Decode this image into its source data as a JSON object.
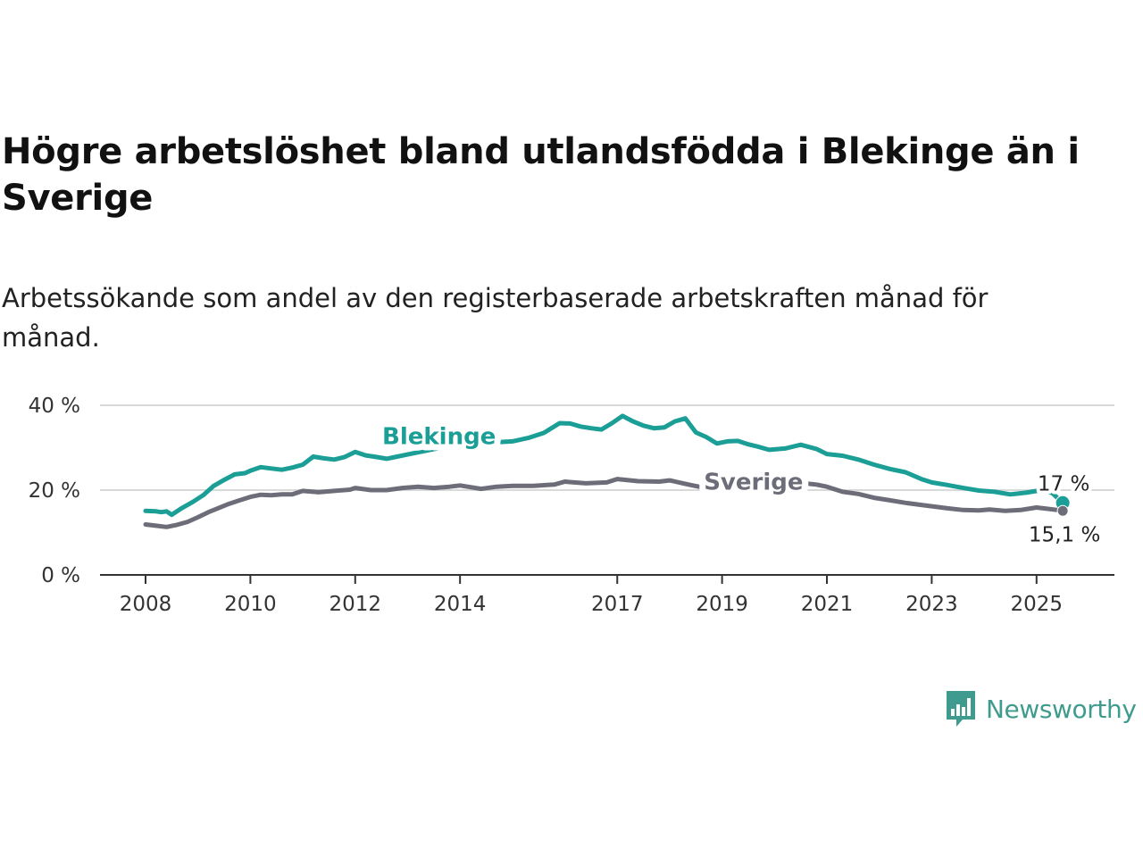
{
  "header": {
    "title": "Högre arbetslöshet bland utlandsfödda i Blekinge än i Sverige",
    "subtitle": "Arbetssökande som andel av den registerbaserade arbetskraften månad för månad."
  },
  "brand": {
    "name": "Newsworthy",
    "icon": "bar-chart-speech-bubble-icon",
    "color": "#3f9b8e"
  },
  "chart_data": {
    "type": "line",
    "title": "Högre arbetslöshet bland utlandsfödda i Blekinge än i Sverige",
    "subtitle": "Arbetssökande som andel av den registerbaserade arbetskraften månad för månad.",
    "xlabel": "",
    "ylabel": "",
    "xlim": [
      2008,
      2025.6
    ],
    "ylim": [
      0,
      40
    ],
    "x_ticks": [
      {
        "value": 2008,
        "label": "2008"
      },
      {
        "value": 2010,
        "label": "2010"
      },
      {
        "value": 2012,
        "label": "2012"
      },
      {
        "value": 2014,
        "label": "2014"
      },
      {
        "value": 2017,
        "label": "2017"
      },
      {
        "value": 2019,
        "label": "2019"
      },
      {
        "value": 2021,
        "label": "2021"
      },
      {
        "value": 2023,
        "label": "2023"
      },
      {
        "value": 2025,
        "label": "2025"
      }
    ],
    "y_ticks": [
      {
        "value": 0,
        "label": "0 %"
      },
      {
        "value": 20,
        "label": "20 %"
      },
      {
        "value": 40,
        "label": "40 %"
      }
    ],
    "grid": true,
    "legend": "inline",
    "series": [
      {
        "name": "Blekinge",
        "color": "#1a9e96",
        "label_at": [
          2013.6,
          30.8
        ],
        "end_label": "17 %",
        "x": [
          2008.0,
          2008.2,
          2008.3,
          2008.4,
          2008.5,
          2008.7,
          2008.9,
          2009.1,
          2009.3,
          2009.5,
          2009.7,
          2009.9,
          2010.0,
          2010.2,
          2010.4,
          2010.6,
          2010.8,
          2011.0,
          2011.2,
          2011.4,
          2011.6,
          2011.8,
          2012.0,
          2012.2,
          2012.4,
          2012.6,
          2012.8,
          2013.0,
          2013.4,
          2013.8,
          2014.2,
          2014.6,
          2015.0,
          2015.3,
          2015.6,
          2015.9,
          2016.1,
          2016.3,
          2016.5,
          2016.7,
          2016.9,
          2017.1,
          2017.3,
          2017.5,
          2017.7,
          2017.9,
          2018.1,
          2018.3,
          2018.5,
          2018.7,
          2018.9,
          2019.1,
          2019.3,
          2019.5,
          2019.7,
          2019.9,
          2020.2,
          2020.5,
          2020.8,
          2021.0,
          2021.3,
          2021.6,
          2021.9,
          2022.2,
          2022.5,
          2022.8,
          2023.0,
          2023.3,
          2023.6,
          2023.9,
          2024.2,
          2024.5,
          2024.8,
          2025.1,
          2025.3,
          2025.5
        ],
        "y": [
          15.1,
          15.0,
          14.8,
          15.0,
          14.2,
          15.8,
          17.2,
          18.8,
          21.0,
          22.4,
          23.7,
          24.0,
          24.6,
          25.4,
          25.1,
          24.8,
          25.3,
          26.0,
          27.9,
          27.5,
          27.2,
          27.8,
          29.0,
          28.2,
          27.8,
          27.4,
          27.9,
          28.4,
          29.4,
          30.4,
          30.9,
          31.2,
          31.5,
          32.3,
          33.5,
          35.8,
          35.7,
          35.0,
          34.6,
          34.3,
          35.8,
          37.5,
          36.2,
          35.2,
          34.6,
          34.8,
          36.2,
          36.9,
          33.6,
          32.5,
          31.0,
          31.5,
          31.6,
          30.8,
          30.2,
          29.5,
          29.8,
          30.7,
          29.7,
          28.5,
          28.1,
          27.2,
          26.0,
          25.0,
          24.2,
          22.6,
          21.8,
          21.2,
          20.5,
          19.9,
          19.6,
          19.0,
          19.4,
          20.0,
          19.3,
          17.0
        ]
      },
      {
        "name": "Sverige",
        "color": "#6d6d79",
        "label_at": [
          2019.6,
          20.1
        ],
        "end_label": "15,1 %",
        "x": [
          2008.0,
          2008.2,
          2008.4,
          2008.6,
          2008.8,
          2009.0,
          2009.2,
          2009.4,
          2009.6,
          2009.8,
          2010.0,
          2010.2,
          2010.4,
          2010.6,
          2010.8,
          2011.0,
          2011.3,
          2011.6,
          2011.9,
          2012.0,
          2012.3,
          2012.6,
          2012.9,
          2013.2,
          2013.5,
          2013.8,
          2014.0,
          2014.2,
          2014.4,
          2014.7,
          2015.0,
          2015.4,
          2015.8,
          2016.0,
          2016.4,
          2016.8,
          2017.0,
          2017.4,
          2017.8,
          2018.0,
          2018.4,
          2018.8,
          2019.2,
          2019.6,
          2020.0,
          2020.4,
          2020.8,
          2021.0,
          2021.3,
          2021.6,
          2021.9,
          2022.2,
          2022.5,
          2022.8,
          2023.0,
          2023.3,
          2023.6,
          2023.9,
          2024.1,
          2024.4,
          2024.7,
          2025.0,
          2025.2,
          2025.4,
          2025.5
        ],
        "y": [
          11.9,
          11.6,
          11.3,
          11.8,
          12.5,
          13.6,
          14.8,
          15.8,
          16.8,
          17.6,
          18.4,
          18.9,
          18.8,
          19.0,
          19.0,
          19.8,
          19.5,
          19.8,
          20.1,
          20.5,
          20.0,
          20.0,
          20.5,
          20.8,
          20.5,
          20.8,
          21.1,
          20.7,
          20.3,
          20.8,
          21.0,
          21.0,
          21.3,
          22.0,
          21.6,
          21.8,
          22.6,
          22.1,
          22.0,
          22.3,
          21.2,
          20.2,
          20.6,
          21.1,
          21.5,
          21.8,
          21.3,
          20.8,
          19.6,
          19.1,
          18.2,
          17.6,
          17.0,
          16.5,
          16.2,
          15.7,
          15.3,
          15.2,
          15.4,
          15.1,
          15.3,
          15.9,
          15.6,
          15.3,
          15.1
        ]
      }
    ]
  }
}
